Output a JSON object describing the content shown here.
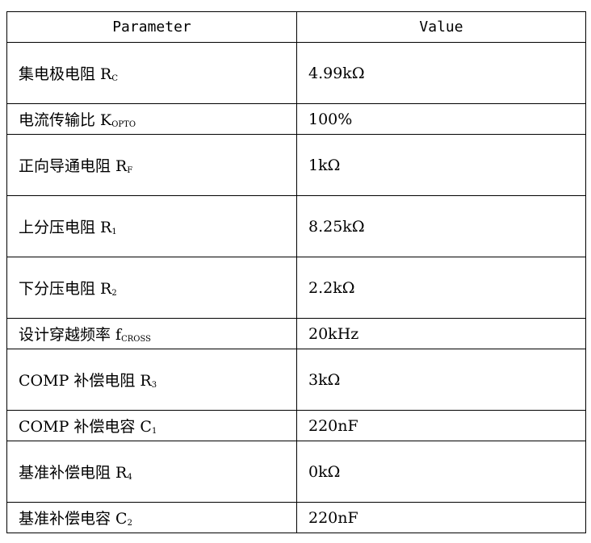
{
  "header": {
    "parameter": "Parameter",
    "value": "Value"
  },
  "rows": [
    {
      "name": "集电极电阻 R",
      "sub": "C",
      "value": "4.99kΩ",
      "tall": true
    },
    {
      "name": "电流传输比 K",
      "sub": "OPTO",
      "value": "100%",
      "tall": false
    },
    {
      "name": "正向导通电阻 R",
      "sub": "F",
      "value": "1kΩ",
      "tall": true
    },
    {
      "name": "上分压电阻 R",
      "sub": "1",
      "value": "8.25kΩ",
      "tall": true
    },
    {
      "name": "下分压电阻 R",
      "sub": "2",
      "value": "2.2kΩ",
      "tall": true
    },
    {
      "name": "设计穿越频率 f",
      "sub": "CROSS",
      "value": "20kHz",
      "tall": false
    },
    {
      "name": "COMP 补偿电阻 R",
      "sub": "3",
      "value": "3kΩ",
      "tall": true
    },
    {
      "name": "COMP 补偿电容 C",
      "sub": "1",
      "value": "220nF",
      "tall": false
    },
    {
      "name": "基准补偿电阻 R",
      "sub": "4",
      "value": "0kΩ",
      "tall": true
    },
    {
      "name": "基准补偿电容 C",
      "sub": "2",
      "value": "220nF",
      "tall": false
    }
  ]
}
